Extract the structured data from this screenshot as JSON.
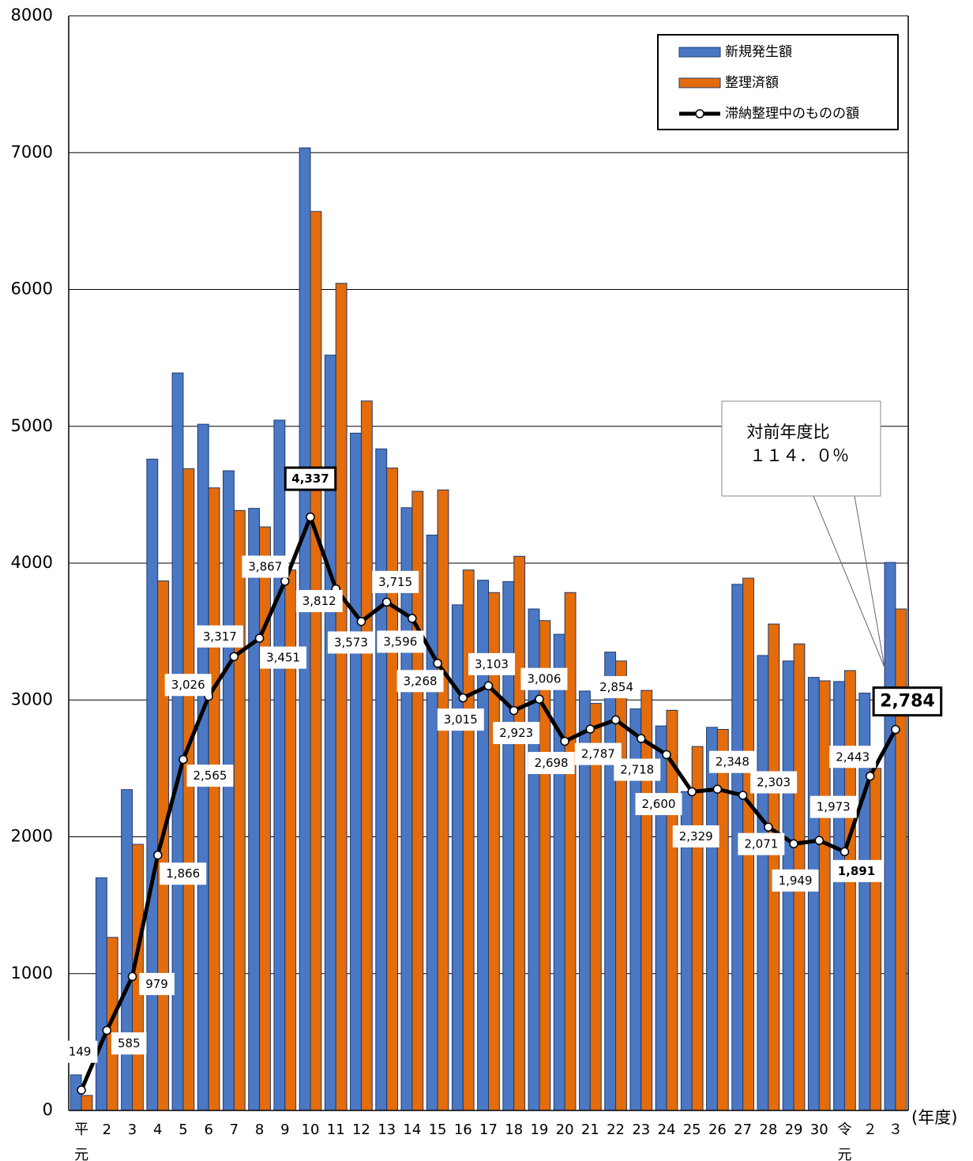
{
  "chart_data": {
    "type": "bar",
    "categories": [
      "平元",
      "2",
      "3",
      "4",
      "5",
      "6",
      "7",
      "8",
      "9",
      "10",
      "11",
      "12",
      "13",
      "14",
      "15",
      "16",
      "17",
      "18",
      "19",
      "20",
      "21",
      "22",
      "23",
      "24",
      "25",
      "26",
      "27",
      "28",
      "29",
      "30",
      "令元",
      "２",
      "３"
    ],
    "x_unit_label": "(年度)",
    "ylim": [
      0,
      8000
    ],
    "yticks": [
      0,
      1000,
      2000,
      3000,
      4000,
      5000,
      6000,
      7000,
      8000
    ],
    "grid": true,
    "legend_position": "upper right",
    "series": [
      {
        "name": "新規発生額",
        "color": "#4a78c4",
        "values": [
          260,
          1700,
          2345,
          4760,
          5390,
          5015,
          4675,
          4400,
          5045,
          7035,
          5520,
          4950,
          4835,
          4405,
          4205,
          3695,
          3875,
          3865,
          3665,
          3480,
          3065,
          3350,
          2935,
          2810,
          2330,
          2800,
          3845,
          3325,
          3285,
          3165,
          3135,
          3050,
          4005
        ]
      },
      {
        "name": "整理済額",
        "color": "#e46c0a",
        "values": [
          110,
          1265,
          1945,
          3870,
          4690,
          4550,
          4385,
          4265,
          3950,
          6570,
          6045,
          5185,
          4695,
          4525,
          4535,
          3950,
          3785,
          4050,
          3580,
          3785,
          2975,
          3285,
          3070,
          2925,
          2660,
          2785,
          3890,
          3555,
          3410,
          3140,
          3215,
          2500,
          3665
        ]
      },
      {
        "name": "滞納整理中のものの額",
        "type": "line",
        "color": "#000000",
        "values": [
          149,
          585,
          979,
          1866,
          2565,
          3026,
          3317,
          3451,
          3867,
          4337,
          3812,
          3573,
          3715,
          3596,
          3268,
          3015,
          3103,
          2923,
          3006,
          2698,
          2787,
          2854,
          2718,
          2600,
          2329,
          2348,
          2303,
          2071,
          1949,
          1973,
          1891,
          2443,
          2784
        ],
        "value_labels": [
          "149",
          "585",
          "979",
          "1,866",
          "2,565",
          "3,026",
          "3,317",
          "3,451",
          "3,867",
          "4,337",
          "3,812",
          "3,573",
          "3,715",
          "3,596",
          "3,268",
          "3,015",
          "3,103",
          "2,923",
          "3,006",
          "2,698",
          "2,787",
          "2,854",
          "2,718",
          "2,600",
          "2,329",
          "2,348",
          "2,303",
          "2,071",
          "1,949",
          "1,973",
          "1,891",
          "2,443",
          "2,784"
        ]
      }
    ],
    "annotation": {
      "lines": [
        "対前年度比",
        "１１４．０％"
      ]
    }
  }
}
